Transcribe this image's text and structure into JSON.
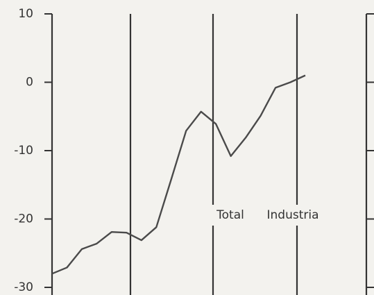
{
  "chart_data": {
    "type": "line",
    "categories": [
      null,
      null,
      null,
      null,
      null,
      null,
      null,
      null,
      null,
      null,
      null,
      null,
      null,
      null,
      null,
      null,
      null,
      null
    ],
    "series": [
      {
        "color": "#4a4a4a",
        "values": [
          -28,
          -27.1,
          -24.4,
          -23.6,
          -21.9,
          -22,
          -23.1,
          -21.2,
          -14.2,
          -7.1,
          -4.3,
          -6.1,
          -10.8,
          -8.1,
          -4.9,
          -0.8,
          0,
          1.0
        ]
      }
    ],
    "ylim": [
      -30,
      10
    ],
    "yticks": [
      -30,
      -20,
      -10,
      0,
      10
    ],
    "annotations": [
      "Total",
      "Industria"
    ]
  }
}
